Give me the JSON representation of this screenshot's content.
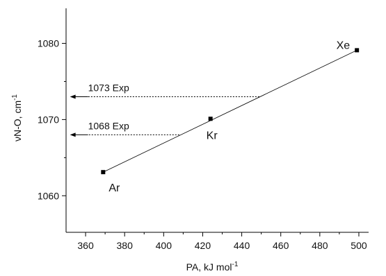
{
  "chart_data": {
    "type": "scatter",
    "xlabel": "PA, kJ mol",
    "xlabel_sup": "-1",
    "ylabel": "νN-O, cm",
    "ylabel_sup": "-1",
    "xlim": [
      350,
      505
    ],
    "ylim": [
      1055.2,
      1084.6
    ],
    "x_ticks": [
      360,
      380,
      400,
      420,
      440,
      460,
      480,
      500
    ],
    "y_ticks": [
      1060,
      1070,
      1080
    ],
    "points": [
      {
        "label": "Ar",
        "x": 369,
        "y": 1063.1
      },
      {
        "label": "Kr",
        "x": 424,
        "y": 1070.1
      },
      {
        "label": "Xe",
        "x": 499,
        "y": 1079.1
      }
    ],
    "fit_line": {
      "x": [
        369,
        499
      ],
      "y": [
        1063.1,
        1079.1
      ]
    },
    "annotations": [
      {
        "label": "1073 Exp",
        "y": 1073,
        "x_from": 449,
        "x_to": 352
      },
      {
        "label": "1068 Exp",
        "y": 1068,
        "x_from": 408,
        "x_to": 352
      }
    ],
    "grid": false,
    "legend": "none"
  }
}
